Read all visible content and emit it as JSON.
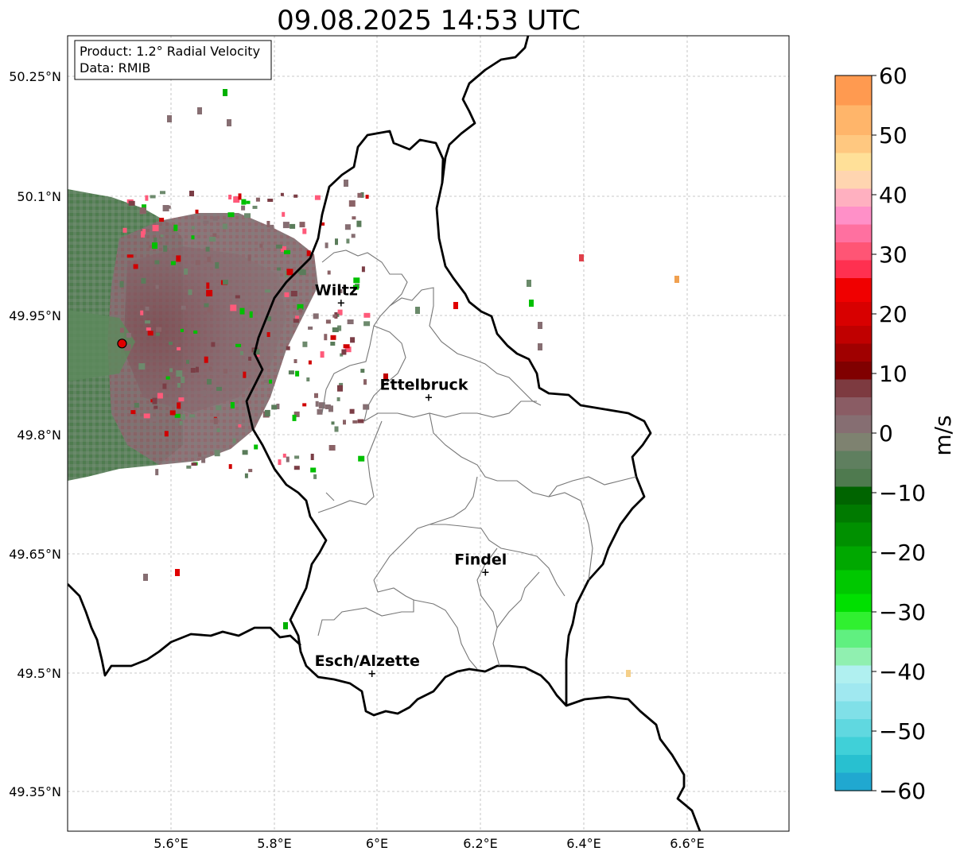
{
  "title": "09.08.2025 14:53 UTC",
  "info_box": {
    "line1": "Product: 1.2° Radial Velocity",
    "line2": "Data: RMIB"
  },
  "lat_ticks": [
    "50.25°N",
    "50.1°N",
    "49.95°N",
    "49.8°N",
    "49.65°N",
    "49.5°N",
    "49.35°N"
  ],
  "lon_ticks": [
    "5.6°E",
    "5.8°E",
    "6°E",
    "6.2°E",
    "6.4°E",
    "6.6°E"
  ],
  "cities": [
    {
      "name": "Wiltz",
      "lon": 5.93,
      "lat": 49.966
    },
    {
      "name": "Ettelbruck",
      "lon": 6.1,
      "lat": 49.847
    },
    {
      "name": "Findel",
      "lon": 6.21,
      "lat": 49.627
    },
    {
      "name": "Esch/Alzette",
      "lon": 5.99,
      "lat": 49.5
    }
  ],
  "radar_site": {
    "lon": 5.505,
    "lat": 49.914
  },
  "colorbar": {
    "label": "m/s",
    "min": -60,
    "max": 60,
    "ticks": [
      "60",
      "50",
      "40",
      "30",
      "20",
      "10",
      "0",
      "−10",
      "−20",
      "−30",
      "−40",
      "−50",
      "−60"
    ]
  }
}
